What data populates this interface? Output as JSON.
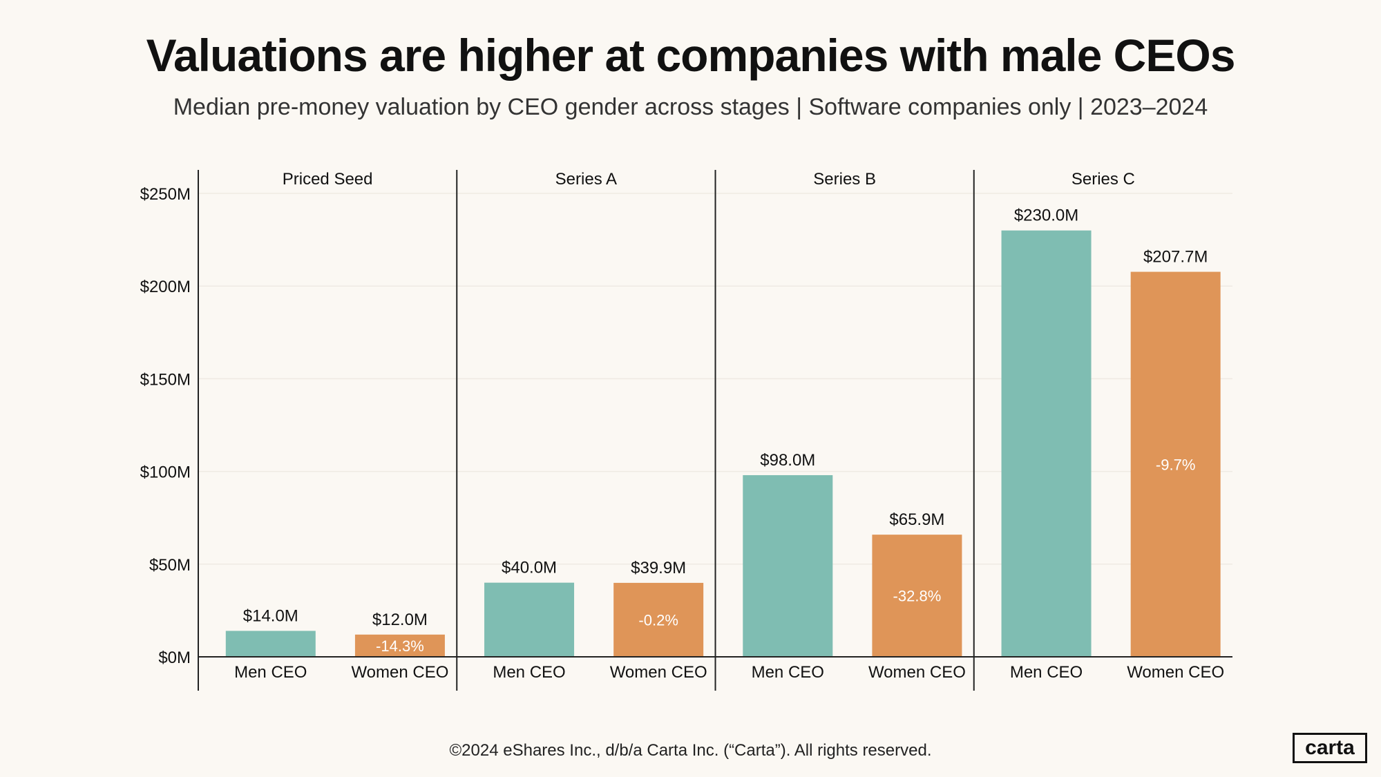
{
  "title": "Valuations are higher at companies with male CEOs",
  "subtitle": "Median pre-money valuation by CEO gender across stages | Software companies only | 2023–2024",
  "footer": "©2024 eShares Inc., d/b/a Carta Inc. (“Carta”). All rights reserved.",
  "logo_text": "carta",
  "colors": {
    "men": "#7fbdb2",
    "women": "#df9558",
    "background": "#fbf8f3",
    "axis": "#222222",
    "grid": "#efeae3"
  },
  "chart_data": {
    "type": "bar",
    "title": "Valuations are higher at companies with male CEOs",
    "subtitle": "Median pre-money valuation by CEO gender across stages | Software companies only | 2023–2024",
    "ylabel": "",
    "xlabel": "",
    "ylim": [
      0,
      250
    ],
    "yticks": [
      0,
      50,
      100,
      150,
      200,
      250
    ],
    "ytick_labels": [
      "$0M",
      "$50M",
      "$100M",
      "$150M",
      "$200M",
      "$250M"
    ],
    "grid": true,
    "legend": "none",
    "panels": [
      {
        "stage": "Priced Seed",
        "bars": [
          {
            "category": "Men CEO",
            "value": 14.0,
            "label": "$14.0M",
            "delta": ""
          },
          {
            "category": "Women CEO",
            "value": 12.0,
            "label": "$12.0M",
            "delta": "-14.3%"
          }
        ]
      },
      {
        "stage": "Series A",
        "bars": [
          {
            "category": "Men CEO",
            "value": 40.0,
            "label": "$40.0M",
            "delta": ""
          },
          {
            "category": "Women CEO",
            "value": 39.9,
            "label": "$39.9M",
            "delta": "-0.2%"
          }
        ]
      },
      {
        "stage": "Series B",
        "bars": [
          {
            "category": "Men CEO",
            "value": 98.0,
            "label": "$98.0M",
            "delta": ""
          },
          {
            "category": "Women CEO",
            "value": 65.9,
            "label": "$65.9M",
            "delta": "-32.8%"
          }
        ]
      },
      {
        "stage": "Series C",
        "bars": [
          {
            "category": "Men CEO",
            "value": 230.0,
            "label": "$230.0M",
            "delta": ""
          },
          {
            "category": "Women CEO",
            "value": 207.7,
            "label": "$207.7M",
            "delta": "-9.7%"
          }
        ]
      }
    ]
  }
}
